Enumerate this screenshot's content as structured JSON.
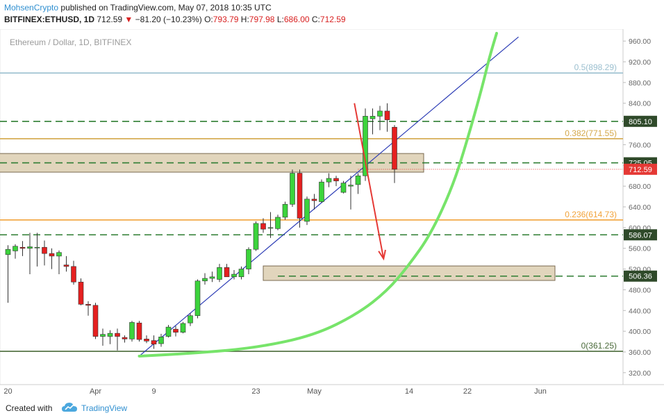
{
  "header": {
    "author": "MohsenCrypto",
    "published": "published on TradingView.com, May 07, 2018 10:35 UTC",
    "symbol": "BITFINEX:ETHUSD, 1D",
    "last": "712.59",
    "change": "−81.20 (−10.23%)",
    "o_label": "O:",
    "o": "793.79",
    "h_label": "H:",
    "h": "797.98",
    "l_label": "L:",
    "l": "686.00",
    "c_label": "C:",
    "c": "712.59",
    "arrow_icon": "down-triangle-icon"
  },
  "footer": {
    "created": "Created with",
    "brand": "TradingView",
    "logo_icon": "tradingview-cloud-icon"
  },
  "chart_data": {
    "type": "candlestick",
    "title": "Ethereum / Dollar, 1D, BITFINEX",
    "y_ticks": [
      320,
      360,
      400,
      440,
      480,
      520,
      560,
      600,
      640,
      680,
      720,
      760,
      800,
      840,
      880,
      920,
      960
    ],
    "y_tick_labels": [
      "320.00",
      "360.00",
      "400.00",
      "440.00",
      "480.00",
      "520.00",
      "560.00",
      "600.00",
      "640.00",
      "680.00",
      "720.00",
      "760.00",
      "800.00",
      "840.00",
      "880.00",
      "920.00",
      "960.00"
    ],
    "ylim": [
      297,
      983
    ],
    "x_tick_labels": [
      {
        "label": "20",
        "day": 0
      },
      {
        "label": "Apr",
        "day": 12
      },
      {
        "label": "9",
        "day": 20
      },
      {
        "label": "23",
        "day": 34
      },
      {
        "label": "May",
        "day": 42
      },
      {
        "label": "14",
        "day": 55
      },
      {
        "label": "22",
        "day": 63
      },
      {
        "label": "Jun",
        "day": 73
      }
    ],
    "fib_levels": [
      {
        "label": "0.5(898.29)",
        "value": 898.29,
        "color": "#9bbfcf"
      },
      {
        "label": "0.382(771.55)",
        "value": 771.55,
        "color": "#d4a84a"
      },
      {
        "label": "0.236(614.73)",
        "value": 614.73,
        "color": "#f2a33a"
      },
      {
        "label": "0(361.25)",
        "value": 361.25,
        "color": "#4a6a3a"
      }
    ],
    "dashed_levels": [
      {
        "label": "805.10",
        "value": 805.1
      },
      {
        "label": "725.05",
        "value": 725.05
      },
      {
        "label": "586.07",
        "value": 586.07
      },
      {
        "label": "506.36",
        "value": 506.36
      }
    ],
    "last_price": {
      "label": "712.59",
      "value": 712.59
    },
    "zones": [
      {
        "from_day": -2,
        "to_day": 57,
        "low": 707,
        "high": 743
      },
      {
        "from_day": 35,
        "to_day": 75,
        "low": 498,
        "high": 526
      }
    ],
    "trendline": {
      "day1": 18,
      "price1": 352,
      "day2": 70,
      "price2": 968
    },
    "curve": {
      "points": [
        [
          18,
          352
        ],
        [
          26,
          358
        ],
        [
          34,
          368
        ],
        [
          42,
          392
        ],
        [
          48,
          434
        ],
        [
          52,
          478
        ],
        [
          55,
          528
        ],
        [
          58,
          588
        ],
        [
          61,
          680
        ],
        [
          63,
          770
        ],
        [
          65,
          870
        ],
        [
          66,
          928
        ],
        [
          67,
          975
        ]
      ]
    },
    "projection_arrow": {
      "day1": 47.5,
      "price1": 840,
      "day2": 51.5,
      "price2": 540
    },
    "candles": [
      {
        "o": 548,
        "h": 566,
        "l": 455,
        "c": 558
      },
      {
        "o": 555,
        "h": 568,
        "l": 540,
        "c": 564
      },
      {
        "o": 562,
        "h": 574,
        "l": 545,
        "c": 560
      },
      {
        "o": 560,
        "h": 590,
        "l": 510,
        "c": 563
      },
      {
        "o": 561,
        "h": 590,
        "l": 525,
        "c": 562
      },
      {
        "o": 562,
        "h": 575,
        "l": 527,
        "c": 550
      },
      {
        "o": 550,
        "h": 560,
        "l": 520,
        "c": 545
      },
      {
        "o": 545,
        "h": 556,
        "l": 510,
        "c": 552
      },
      {
        "o": 528,
        "h": 545,
        "l": 515,
        "c": 525
      },
      {
        "o": 525,
        "h": 536,
        "l": 490,
        "c": 495
      },
      {
        "o": 495,
        "h": 502,
        "l": 450,
        "c": 452
      },
      {
        "o": 452,
        "h": 458,
        "l": 430,
        "c": 450
      },
      {
        "o": 450,
        "h": 455,
        "l": 385,
        "c": 390
      },
      {
        "o": 390,
        "h": 405,
        "l": 372,
        "c": 394
      },
      {
        "o": 390,
        "h": 402,
        "l": 375,
        "c": 396
      },
      {
        "o": 396,
        "h": 405,
        "l": 363,
        "c": 390
      },
      {
        "o": 388,
        "h": 392,
        "l": 378,
        "c": 385
      },
      {
        "o": 385,
        "h": 420,
        "l": 380,
        "c": 417
      },
      {
        "o": 416,
        "h": 420,
        "l": 380,
        "c": 384
      },
      {
        "o": 385,
        "h": 392,
        "l": 377,
        "c": 381
      },
      {
        "o": 382,
        "h": 392,
        "l": 366,
        "c": 375
      },
      {
        "o": 376,
        "h": 395,
        "l": 370,
        "c": 389
      },
      {
        "o": 390,
        "h": 412,
        "l": 388,
        "c": 408
      },
      {
        "o": 404,
        "h": 410,
        "l": 390,
        "c": 398
      },
      {
        "o": 398,
        "h": 418,
        "l": 396,
        "c": 415
      },
      {
        "o": 416,
        "h": 435,
        "l": 410,
        "c": 430
      },
      {
        "o": 430,
        "h": 500,
        "l": 425,
        "c": 497
      },
      {
        "o": 497,
        "h": 512,
        "l": 490,
        "c": 502
      },
      {
        "o": 502,
        "h": 515,
        "l": 495,
        "c": 505
      },
      {
        "o": 500,
        "h": 530,
        "l": 495,
        "c": 523
      },
      {
        "o": 523,
        "h": 530,
        "l": 505,
        "c": 505
      },
      {
        "o": 505,
        "h": 518,
        "l": 500,
        "c": 510
      },
      {
        "o": 505,
        "h": 525,
        "l": 500,
        "c": 520
      },
      {
        "o": 520,
        "h": 562,
        "l": 510,
        "c": 558
      },
      {
        "o": 558,
        "h": 612,
        "l": 555,
        "c": 608
      },
      {
        "o": 608,
        "h": 618,
        "l": 590,
        "c": 597
      },
      {
        "o": 600,
        "h": 630,
        "l": 580,
        "c": 600
      },
      {
        "o": 598,
        "h": 625,
        "l": 595,
        "c": 620
      },
      {
        "o": 620,
        "h": 650,
        "l": 615,
        "c": 645
      },
      {
        "o": 645,
        "h": 712,
        "l": 640,
        "c": 705
      },
      {
        "o": 705,
        "h": 712,
        "l": 600,
        "c": 618
      },
      {
        "o": 612,
        "h": 660,
        "l": 605,
        "c": 655
      },
      {
        "o": 655,
        "h": 665,
        "l": 635,
        "c": 652
      },
      {
        "o": 650,
        "h": 693,
        "l": 648,
        "c": 688
      },
      {
        "o": 688,
        "h": 705,
        "l": 678,
        "c": 695
      },
      {
        "o": 695,
        "h": 700,
        "l": 680,
        "c": 690
      },
      {
        "o": 668,
        "h": 690,
        "l": 666,
        "c": 686
      },
      {
        "o": 680,
        "h": 700,
        "l": 635,
        "c": 682
      },
      {
        "o": 683,
        "h": 705,
        "l": 665,
        "c": 700
      },
      {
        "o": 700,
        "h": 830,
        "l": 690,
        "c": 815
      },
      {
        "o": 810,
        "h": 830,
        "l": 780,
        "c": 815
      },
      {
        "o": 815,
        "h": 835,
        "l": 788,
        "c": 825
      },
      {
        "o": 825,
        "h": 840,
        "l": 785,
        "c": 808
      },
      {
        "o": 793.79,
        "h": 797.98,
        "l": 686,
        "c": 712.59
      }
    ]
  }
}
